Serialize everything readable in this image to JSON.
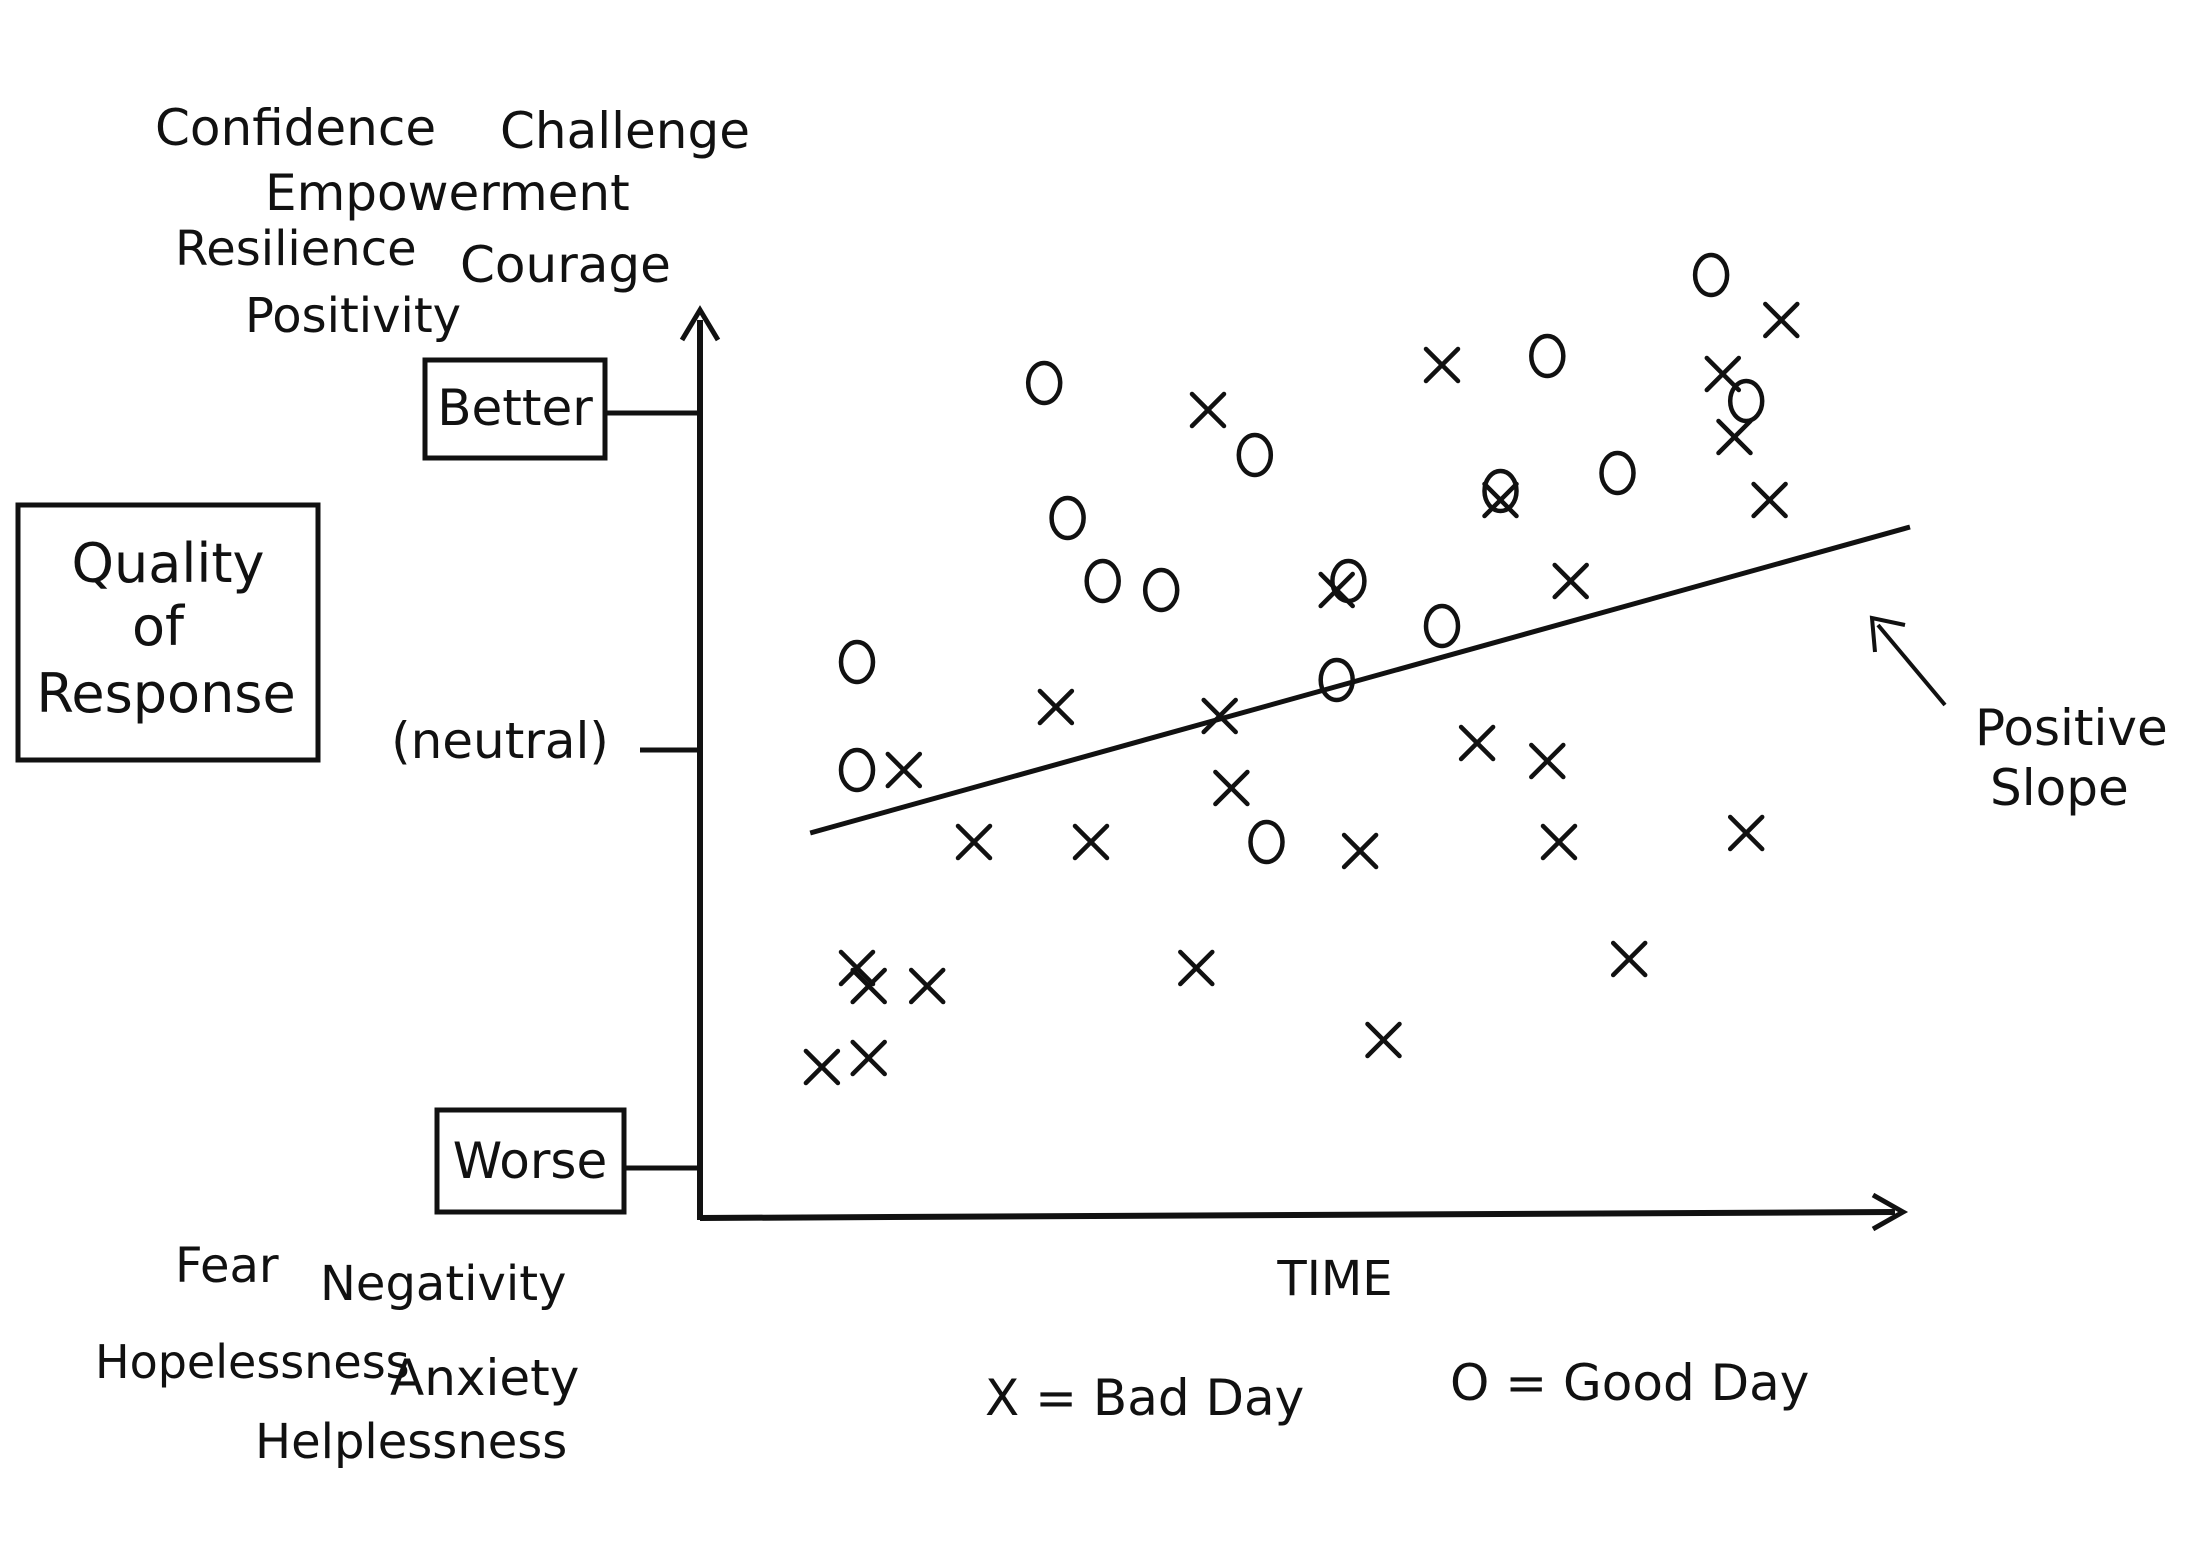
{
  "colors": {
    "ink": "#111111",
    "paper": "#ffffff"
  },
  "words_positive": [
    "Confidence",
    "Challenge",
    "Empowerment",
    "Resilience",
    "Courage",
    "Positivity"
  ],
  "words_negative": [
    "Fear",
    "Negativity",
    "Hopelessness",
    "Anxiety",
    "Helplessness"
  ],
  "box_quality": [
    "Quality",
    "of",
    "Response"
  ],
  "chart_data": {
    "type": "scatter",
    "y_ticks": {
      "better": "Better",
      "neutral": "(neutral)",
      "worse": "Worse"
    },
    "xlabel": "TIME",
    "legend": {
      "bad": "X = Bad Day",
      "good": "O = Good Day"
    },
    "annotation": [
      "Positive",
      "Slope"
    ],
    "xlim": [
      0,
      100
    ],
    "ylim": [
      0,
      100
    ],
    "trend": {
      "x": [
        6,
        100
      ],
      "y": [
        38,
        72
      ]
    },
    "series": [
      {
        "marker": "O",
        "points": [
          [
            10,
            57
          ],
          [
            10,
            45
          ],
          [
            26,
            88
          ],
          [
            28,
            73
          ],
          [
            31,
            66
          ],
          [
            36,
            65
          ],
          [
            44,
            80
          ],
          [
            51,
            55
          ],
          [
            52,
            66
          ],
          [
            60,
            61
          ],
          [
            65,
            76
          ],
          [
            69,
            91
          ],
          [
            75,
            78
          ],
          [
            83,
            100
          ],
          [
            86,
            86
          ],
          [
            45,
            37
          ]
        ]
      },
      {
        "marker": "X",
        "points": [
          [
            7,
            12
          ],
          [
            10,
            23
          ],
          [
            11,
            21
          ],
          [
            11,
            13
          ],
          [
            16,
            21
          ],
          [
            14,
            45
          ],
          [
            20,
            37
          ],
          [
            27,
            52
          ],
          [
            30,
            37
          ],
          [
            39,
            23
          ],
          [
            40,
            85
          ],
          [
            41,
            51
          ],
          [
            42,
            43
          ],
          [
            51,
            65
          ],
          [
            53,
            36
          ],
          [
            55,
            15
          ],
          [
            60,
            90
          ],
          [
            63,
            48
          ],
          [
            65,
            75
          ],
          [
            69,
            46
          ],
          [
            70,
            37
          ],
          [
            71,
            66
          ],
          [
            76,
            24
          ],
          [
            84,
            89
          ],
          [
            85,
            82
          ],
          [
            86,
            38
          ],
          [
            89,
            95
          ],
          [
            88,
            75
          ]
        ]
      }
    ]
  }
}
